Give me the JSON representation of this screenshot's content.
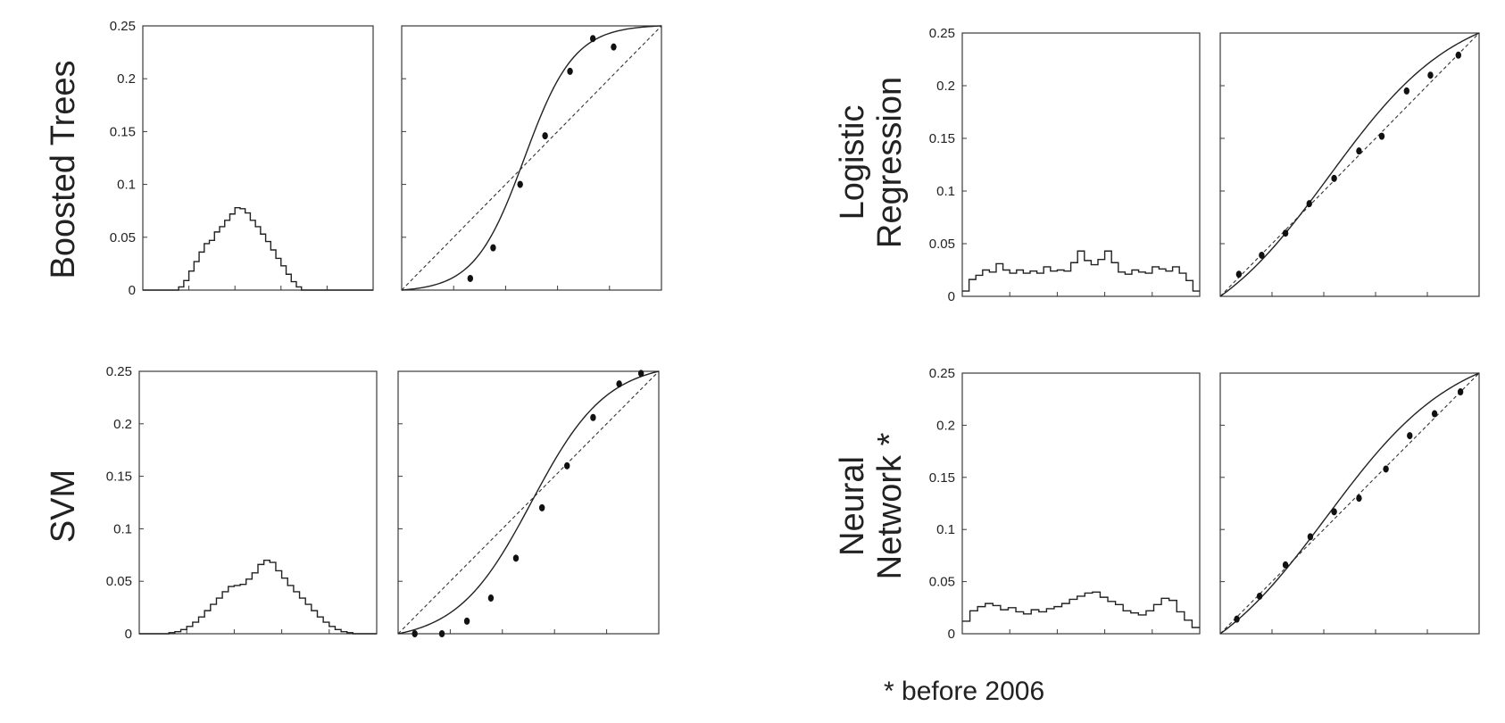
{
  "footnote": "* before 2006",
  "chart_data": [
    {
      "type": "bar",
      "model": "Boosted Trees",
      "panel": "histogram",
      "ylim": [
        0,
        0.25
      ],
      "ytick_labels": [
        "0",
        "0.05",
        "0.1",
        "0.15",
        "0.2",
        "0.25"
      ],
      "bin_values": [
        0,
        0,
        0,
        0,
        0,
        0,
        0,
        0.003,
        0.009,
        0.018,
        0.027,
        0.036,
        0.044,
        0.047,
        0.055,
        0.06,
        0.066,
        0.072,
        0.078,
        0.077,
        0.073,
        0.066,
        0.06,
        0.053,
        0.046,
        0.038,
        0.03,
        0.023,
        0.015,
        0.008,
        0.003,
        0,
        0,
        0,
        0,
        0,
        0,
        0,
        0,
        0,
        0,
        0,
        0,
        0,
        0
      ]
    },
    {
      "type": "scatter",
      "model": "Boosted Trees",
      "panel": "reliability",
      "xlim": [
        0,
        0.25
      ],
      "ylim": [
        0,
        0.25
      ],
      "points": [
        [
          0.066,
          0.011
        ],
        [
          0.088,
          0.04
        ],
        [
          0.114,
          0.1
        ],
        [
          0.138,
          0.146
        ],
        [
          0.162,
          0.207
        ],
        [
          0.184,
          0.238
        ],
        [
          0.204,
          0.23
        ]
      ],
      "fit": {
        "kind": "sigmoid",
        "center": 0.118,
        "scale": 0.024
      }
    },
    {
      "type": "bar",
      "model": "SVM",
      "panel": "histogram",
      "ylim": [
        0,
        0.25
      ],
      "ytick_labels": [
        "0",
        "0.05",
        "0.1",
        "0.15",
        "0.2",
        "0.25"
      ],
      "bin_values": [
        0,
        0,
        0,
        0,
        0,
        0.001,
        0.002,
        0.004,
        0.007,
        0.011,
        0.016,
        0.022,
        0.028,
        0.034,
        0.04,
        0.045,
        0.046,
        0.047,
        0.052,
        0.058,
        0.066,
        0.07,
        0.068,
        0.06,
        0.053,
        0.046,
        0.04,
        0.034,
        0.028,
        0.022,
        0.016,
        0.011,
        0.007,
        0.004,
        0.002,
        0.001,
        0,
        0,
        0,
        0
      ]
    },
    {
      "type": "scatter",
      "model": "SVM",
      "panel": "reliability",
      "xlim": [
        0,
        0.25
      ],
      "ylim": [
        0,
        0.25
      ],
      "points": [
        [
          0.016,
          0.0
        ],
        [
          0.042,
          0.0
        ],
        [
          0.066,
          0.012
        ],
        [
          0.089,
          0.034
        ],
        [
          0.113,
          0.072
        ],
        [
          0.138,
          0.12
        ],
        [
          0.162,
          0.16
        ],
        [
          0.187,
          0.206
        ],
        [
          0.212,
          0.238
        ],
        [
          0.233,
          0.248
        ]
      ],
      "fit": {
        "kind": "sigmoid",
        "center": 0.128,
        "scale": 0.036
      }
    },
    {
      "type": "bar",
      "model": "Logistic\nRegression",
      "panel": "histogram",
      "ylim": [
        0,
        0.25
      ],
      "ytick_labels": [
        "0",
        "0.05",
        "0.1",
        "0.15",
        "0.2",
        "0.25"
      ],
      "bin_values": [
        0.005,
        0.016,
        0.02,
        0.025,
        0.023,
        0.031,
        0.025,
        0.022,
        0.025,
        0.022,
        0.024,
        0.022,
        0.028,
        0.024,
        0.025,
        0.024,
        0.032,
        0.043,
        0.034,
        0.03,
        0.035,
        0.043,
        0.032,
        0.023,
        0.021,
        0.025,
        0.023,
        0.022,
        0.028,
        0.026,
        0.024,
        0.028,
        0.022,
        0.015,
        0.005
      ]
    },
    {
      "type": "scatter",
      "model": "Logistic\nRegression",
      "panel": "reliability",
      "xlim": [
        0,
        0.25
      ],
      "ylim": [
        0,
        0.25
      ],
      "points": [
        [
          0.018,
          0.021
        ],
        [
          0.04,
          0.039
        ],
        [
          0.063,
          0.06
        ],
        [
          0.086,
          0.088
        ],
        [
          0.11,
          0.112
        ],
        [
          0.134,
          0.138
        ],
        [
          0.156,
          0.152
        ],
        [
          0.18,
          0.195
        ],
        [
          0.203,
          0.21
        ],
        [
          0.23,
          0.229
        ]
      ],
      "fit": {
        "kind": "sigmoid",
        "center": 0.105,
        "scale": 0.062
      }
    },
    {
      "type": "bar",
      "model": "Neural\nNetwork *",
      "panel": "histogram",
      "ylim": [
        0,
        0.25
      ],
      "ytick_labels": [
        "0",
        "0.05",
        "0.1",
        "0.15",
        "0.2",
        "0.25"
      ],
      "bin_values": [
        0.012,
        0.022,
        0.026,
        0.029,
        0.027,
        0.023,
        0.025,
        0.021,
        0.019,
        0.023,
        0.021,
        0.024,
        0.026,
        0.029,
        0.033,
        0.036,
        0.039,
        0.04,
        0.035,
        0.031,
        0.028,
        0.022,
        0.02,
        0.018,
        0.022,
        0.028,
        0.034,
        0.032,
        0.021,
        0.013,
        0.006
      ]
    },
    {
      "type": "scatter",
      "model": "Neural\nNetwork *",
      "panel": "reliability",
      "xlim": [
        0,
        0.25
      ],
      "ylim": [
        0,
        0.25
      ],
      "points": [
        [
          0.016,
          0.014
        ],
        [
          0.038,
          0.036
        ],
        [
          0.063,
          0.066
        ],
        [
          0.087,
          0.093
        ],
        [
          0.11,
          0.117
        ],
        [
          0.134,
          0.13
        ],
        [
          0.16,
          0.158
        ],
        [
          0.183,
          0.19
        ],
        [
          0.207,
          0.211
        ],
        [
          0.232,
          0.232
        ]
      ],
      "fit": {
        "kind": "sigmoid",
        "center": 0.103,
        "scale": 0.063
      }
    }
  ]
}
